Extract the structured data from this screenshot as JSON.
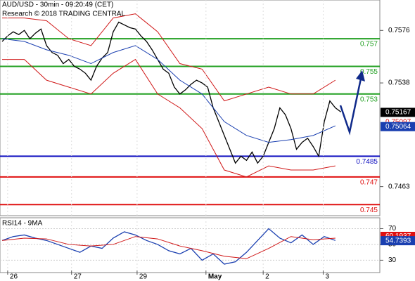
{
  "header": {
    "title": "AUD/USD - 30min - 09:20:49 (CET)",
    "subtitle": "Research © 2018 TRADING CENTRAL"
  },
  "chart_data": [
    {
      "type": "line",
      "ylim": [
        0.7443,
        0.7598
      ],
      "xlim": [
        0,
        68
      ],
      "yticks": [
        0.7576,
        0.7538,
        0.7463
      ],
      "levels": {
        "values": [
          0.757,
          0.755,
          0.753,
          0.7485,
          0.747,
          0.745
        ],
        "colors": [
          "#22a022",
          "#22a022",
          "#22a022",
          "#1010c0",
          "#e01010",
          "#e01010"
        ]
      },
      "tags": {
        "values": [
          0.75167,
          0.75097,
          0.75064
        ],
        "colors": [
          "#000000",
          "#e01010",
          "#1a3fb0"
        ],
        "styles": [
          "box",
          "text",
          "box"
        ]
      },
      "series": [
        {
          "color": "#000000",
          "x": [
            0,
            1,
            2,
            3,
            4,
            5,
            6,
            7,
            8,
            9,
            10,
            11,
            12,
            13,
            14,
            15,
            16,
            17,
            18,
            19,
            20,
            21,
            22,
            23,
            24,
            25,
            26,
            27,
            28,
            29,
            30,
            31,
            32,
            33,
            34,
            35,
            36,
            37,
            38,
            39,
            40,
            41,
            42,
            43,
            44,
            45,
            46,
            47,
            48,
            49,
            50,
            51,
            52,
            53,
            54,
            55,
            56,
            57,
            58,
            59,
            60,
            61
          ],
          "values": [
            0.7568,
            0.7572,
            0.7575,
            0.7573,
            0.7576,
            0.757,
            0.7574,
            0.7577,
            0.7565,
            0.756,
            0.7558,
            0.7552,
            0.7555,
            0.755,
            0.7548,
            0.7545,
            0.754,
            0.755,
            0.7556,
            0.756,
            0.7575,
            0.7582,
            0.758,
            0.7578,
            0.7577,
            0.7572,
            0.7568,
            0.7562,
            0.7555,
            0.7548,
            0.7545,
            0.7535,
            0.753,
            0.7533,
            0.7537,
            0.754,
            0.7538,
            0.7535,
            0.752,
            0.751,
            0.75,
            0.749,
            0.748,
            0.7485,
            0.7482,
            0.7488,
            0.748,
            0.7485,
            0.7495,
            0.7505,
            0.752,
            0.7515,
            0.7505,
            0.749,
            0.7495,
            0.7498,
            0.7492,
            0.7485,
            0.751,
            0.7525,
            0.752,
            0.7517
          ]
        },
        {
          "color": "#d01818",
          "x": [
            0,
            4,
            8,
            12,
            16,
            20,
            24,
            28,
            32,
            36,
            40,
            44,
            48,
            52,
            56,
            60
          ],
          "values": [
            0.7585,
            0.7585,
            0.7583,
            0.757,
            0.7565,
            0.7585,
            0.7588,
            0.7575,
            0.7552,
            0.7548,
            0.7525,
            0.753,
            0.7535,
            0.753,
            0.753,
            0.754
          ]
        },
        {
          "color": "#d01818",
          "x": [
            0,
            4,
            8,
            12,
            16,
            20,
            24,
            28,
            32,
            36,
            40,
            44,
            48,
            52,
            56,
            60
          ],
          "values": [
            0.7555,
            0.7555,
            0.754,
            0.7535,
            0.753,
            0.7545,
            0.7555,
            0.753,
            0.752,
            0.7505,
            0.7475,
            0.747,
            0.7478,
            0.7475,
            0.7475,
            0.7478
          ]
        },
        {
          "color": "#1a3fb0",
          "x": [
            0,
            4,
            8,
            12,
            16,
            20,
            24,
            28,
            32,
            36,
            40,
            44,
            48,
            52,
            56,
            60
          ],
          "values": [
            0.757,
            0.7568,
            0.7562,
            0.7558,
            0.7552,
            0.756,
            0.7565,
            0.7555,
            0.754,
            0.753,
            0.751,
            0.75,
            0.7495,
            0.7497,
            0.75,
            0.7507
          ]
        }
      ]
    },
    {
      "type": "line",
      "title": "RSI14 - 9MA",
      "ylim": [
        17,
        82
      ],
      "xlim": [
        0,
        68
      ],
      "yticks": [
        70,
        50,
        30
      ],
      "xticks": [
        {
          "value": 1,
          "label": "26"
        },
        {
          "value": 12.5,
          "label": "27"
        },
        {
          "value": 24.3,
          "label": "29"
        },
        {
          "value": 36.7,
          "label": "May"
        },
        {
          "value": 47,
          "label": "2"
        },
        {
          "value": 57.8,
          "label": "3"
        }
      ],
      "tags": {
        "values": [
          60.1937,
          54.7393
        ],
        "colors": [
          "#e01010",
          "#1a3fb0"
        ],
        "styles": [
          "box",
          "box"
        ]
      },
      "series": [
        {
          "color": "#1a3fb0",
          "x": [
            0,
            2,
            4,
            6,
            8,
            10,
            12,
            14,
            16,
            18,
            20,
            22,
            24,
            26,
            28,
            30,
            32,
            34,
            36,
            38,
            40,
            42,
            44,
            46,
            48,
            50,
            52,
            54,
            56,
            58,
            60
          ],
          "values": [
            55,
            60,
            62,
            58,
            55,
            50,
            45,
            40,
            48,
            45,
            58,
            66,
            62,
            55,
            50,
            42,
            38,
            45,
            30,
            38,
            25,
            28,
            40,
            55,
            70,
            58,
            52,
            62,
            50,
            60,
            55
          ]
        },
        {
          "color": "#d01818",
          "x": [
            0,
            4,
            8,
            12,
            16,
            20,
            24,
            28,
            32,
            36,
            40,
            44,
            48,
            52,
            56,
            60
          ],
          "values": [
            55,
            58,
            57,
            50,
            48,
            50,
            60,
            57,
            48,
            42,
            35,
            32,
            45,
            60,
            56,
            58
          ]
        }
      ]
    }
  ]
}
